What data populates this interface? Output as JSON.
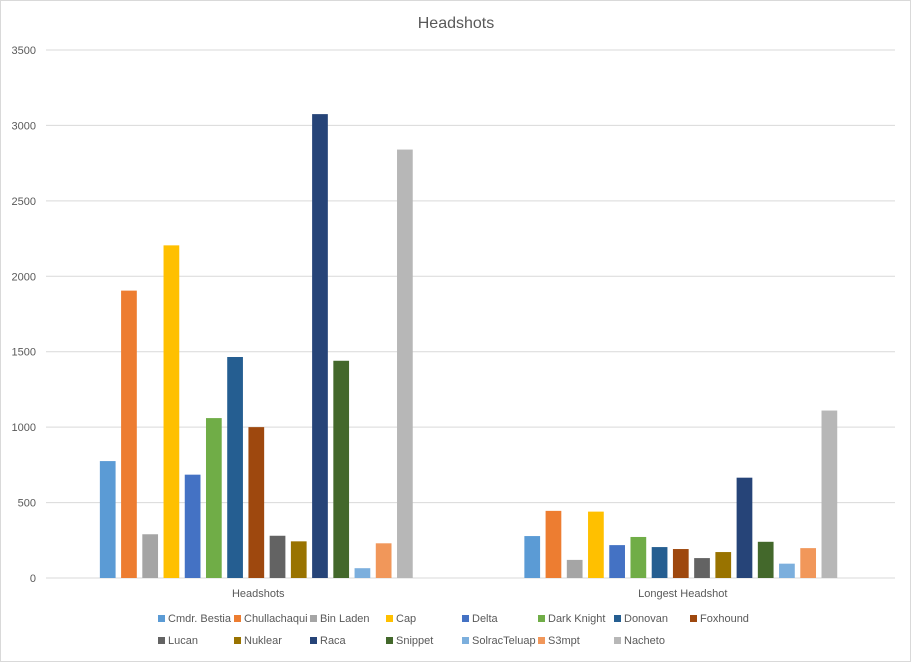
{
  "chart_data": {
    "type": "bar",
    "title": "Headshots",
    "categories": [
      "Headshots",
      "Longest Headshot"
    ],
    "ylim": [
      0,
      3500
    ],
    "yticks": [
      0,
      500,
      1000,
      1500,
      2000,
      2500,
      3000,
      3500
    ],
    "grid": true,
    "legend_position": "bottom",
    "series": [
      {
        "name": "Cmdr. Bestia",
        "color": "#5B9BD5",
        "values": [
          775,
          278
        ]
      },
      {
        "name": "Chullachaqui",
        "color": "#ED7D31",
        "values": [
          1905,
          445
        ]
      },
      {
        "name": "Bin Laden",
        "color": "#A5A5A5",
        "values": [
          290,
          120
        ]
      },
      {
        "name": "Cap",
        "color": "#FFC000",
        "values": [
          2205,
          440
        ]
      },
      {
        "name": "Delta",
        "color": "#4472C4",
        "values": [
          685,
          218
        ]
      },
      {
        "name": "Dark Knight",
        "color": "#70AD47",
        "values": [
          1060,
          272
        ]
      },
      {
        "name": "Donovan",
        "color": "#255E91",
        "values": [
          1465,
          205
        ]
      },
      {
        "name": "Foxhound",
        "color": "#9E480E",
        "values": [
          1000,
          192
        ]
      },
      {
        "name": "Lucan",
        "color": "#636363",
        "values": [
          280,
          132
        ]
      },
      {
        "name": "Nuklear",
        "color": "#997300",
        "values": [
          243,
          172
        ]
      },
      {
        "name": "Raca",
        "color": "#264478",
        "values": [
          3075,
          665
        ]
      },
      {
        "name": "Snippet",
        "color": "#43682B",
        "values": [
          1440,
          240
        ]
      },
      {
        "name": "SolracTeluap",
        "color": "#7CAFDD",
        "values": [
          65,
          95
        ]
      },
      {
        "name": "S3mpt",
        "color": "#F1975A",
        "values": [
          230,
          198
        ]
      },
      {
        "name": "Nacheto",
        "color": "#B7B7B7",
        "values": [
          2840,
          1110
        ]
      }
    ]
  }
}
